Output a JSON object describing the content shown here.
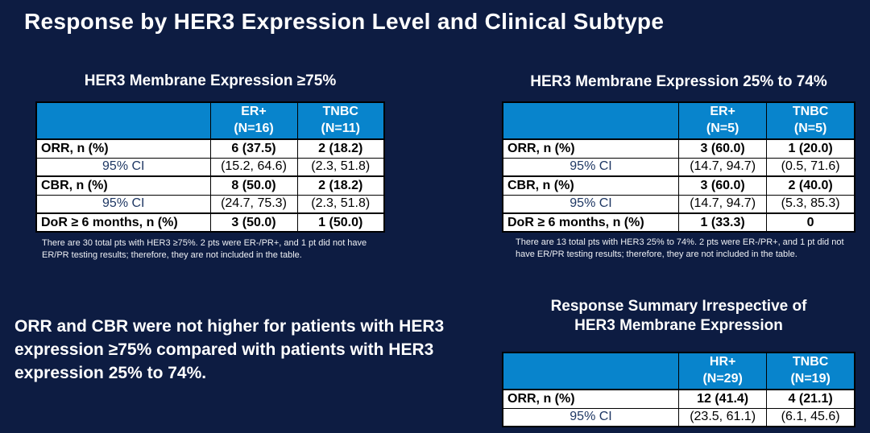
{
  "slide": {
    "title": "Response by HER3 Expression Level and Clinical Subtype"
  },
  "colors": {
    "background_navy": "#0d1c42",
    "table_header_blue": "#0884cc",
    "ci_label_navy": "#1f3864",
    "table_border": "#000000",
    "text_white": "#ffffff"
  },
  "table_high": {
    "title": "HER3 Membrane Expression ≥75%",
    "col1": {
      "name": "ER+",
      "n": "(N=16)"
    },
    "col2": {
      "name": "TNBC",
      "n": "(N=11)"
    },
    "rows": [
      {
        "label": "ORR, n (%)",
        "v1": "6 (37.5)",
        "v2": "2 (18.2)"
      },
      {
        "label": "95% CI",
        "v1": "(15.2, 64.6)",
        "v2": "(2.3, 51.8)"
      },
      {
        "label": "CBR, n (%)",
        "v1": "8 (50.0)",
        "v2": "2 (18.2)"
      },
      {
        "label": "95% CI",
        "v1": "(24.7, 75.3)",
        "v2": "(2.3, 51.8)"
      },
      {
        "label": "DoR ≥ 6 months, n (%)",
        "v1": "3 (50.0)",
        "v2": "1 (50.0)"
      }
    ],
    "footnote": "There are 30 total pts with HER3 ≥75%. 2 pts were ER-/PR+, and 1 pt did not have ER/PR testing results; therefore, they are not included in the table."
  },
  "table_mid": {
    "title": "HER3 Membrane Expression 25% to 74%",
    "col1": {
      "name": "ER+",
      "n": "(N=5)"
    },
    "col2": {
      "name": "TNBC",
      "n": "(N=5)"
    },
    "rows": [
      {
        "label": "ORR, n (%)",
        "v1": "3 (60.0)",
        "v2": "1 (20.0)"
      },
      {
        "label": "95% CI",
        "v1": "(14.7, 94.7)",
        "v2": "(0.5, 71.6)"
      },
      {
        "label": "CBR, n (%)",
        "v1": "3 (60.0)",
        "v2": "2 (40.0)"
      },
      {
        "label": "95% CI",
        "v1": "(14.7, 94.7)",
        "v2": "(5.3, 85.3)"
      },
      {
        "label": "DoR ≥ 6 months, n (%)",
        "v1": "1 (33.3)",
        "v2": "0"
      }
    ],
    "footnote": "There are 13 total pts with HER3 25% to 74%. 2 pts were ER-/PR+, and 1 pt did not have ER/PR testing results; therefore, they are not included in the table."
  },
  "statement": "ORR and CBR were not higher for patients with HER3 expression ≥75% compared with patients with HER3 expression 25% to 74%.",
  "table_summary": {
    "title_line1": "Response Summary Irrespective of",
    "title_line2": "HER3 Membrane Expression",
    "col1": {
      "name": "HR+",
      "n": "(N=29)"
    },
    "col2": {
      "name": "TNBC",
      "n": "(N=19)"
    },
    "rows": [
      {
        "label": "ORR, n (%)",
        "v1": "12 (41.4)",
        "v2": "4 (21.1)"
      },
      {
        "label": "95% CI",
        "v1": "(23.5, 61.1)",
        "v2": "(6.1, 45.6)"
      }
    ]
  }
}
